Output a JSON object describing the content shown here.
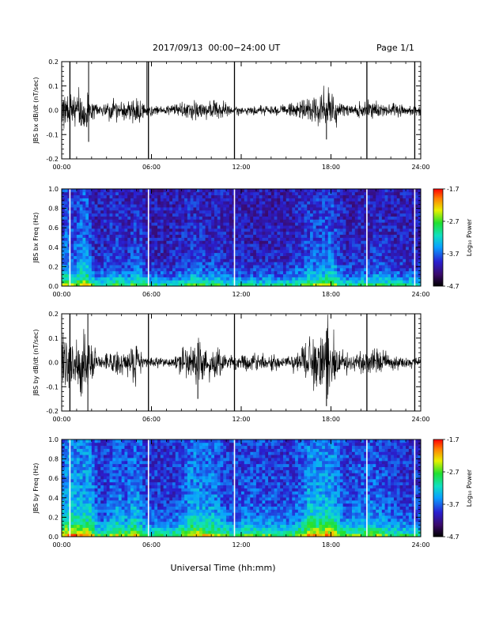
{
  "header": {
    "title": "2017/09/13  00:00−24:00 UT",
    "page": "Page 1/1"
  },
  "chart_data": [
    {
      "type": "line",
      "ylabel": "JBS bx dB/dt (nT/sec)",
      "ylim": [
        -0.2,
        0.2
      ],
      "yticks": [
        "-0.2",
        "-0.1",
        "0.0",
        "0.1",
        "0.2"
      ],
      "xlim": [
        0,
        24
      ],
      "xticks": [
        "00:00",
        "06:00",
        "12:00",
        "18:00",
        "24:00"
      ],
      "gaps_hours": [
        0.55,
        5.8,
        11.55,
        20.4,
        23.6
      ],
      "spikes": [
        {
          "x": 1.8,
          "min": -0.13,
          "max": 0.2
        },
        {
          "x": 5.7,
          "min": -0.02,
          "max": 0.2
        },
        {
          "x": 17.7,
          "min": -0.12,
          "max": 0.03
        }
      ]
    },
    {
      "type": "heatmap",
      "ylabel": "JBS bx Freq (Hz)",
      "ylim": [
        0,
        1
      ],
      "yticks": [
        "0.0",
        "0.2",
        "0.4",
        "0.6",
        "0.8",
        "1.0"
      ],
      "xlim": [
        0,
        24
      ],
      "xticks": [
        "00:00",
        "06:00",
        "12:00",
        "18:00",
        "24:00"
      ],
      "colorbar": {
        "label": "Log₁₀ Power",
        "range": [
          -4.7,
          -1.7
        ],
        "ticks": [
          "-1.7",
          "-2.7",
          "-3.7",
          "-4.7"
        ]
      }
    },
    {
      "type": "line",
      "ylabel": "JBS by dB/dt (nT/sec)",
      "ylim": [
        -0.2,
        0.2
      ],
      "yticks": [
        "-0.2",
        "-0.1",
        "0.0",
        "0.1",
        "0.2"
      ],
      "xlim": [
        0,
        24
      ],
      "xticks": [
        "00:00",
        "06:00",
        "12:00",
        "18:00",
        "24:00"
      ],
      "gaps_hours": [
        0.55,
        5.8,
        11.55,
        20.4,
        23.6
      ],
      "spikes": [
        {
          "x": 1.75,
          "min": -0.2,
          "max": 0.2
        },
        {
          "x": 9.1,
          "min": -0.15,
          "max": 0.08
        },
        {
          "x": 17.7,
          "min": -0.18,
          "max": 0.13
        }
      ]
    },
    {
      "type": "heatmap",
      "ylabel": "JBS by Freq (Hz)",
      "ylim": [
        0,
        1
      ],
      "yticks": [
        "0.0",
        "0.2",
        "0.4",
        "0.6",
        "0.8",
        "1.0"
      ],
      "xlim": [
        0,
        24
      ],
      "xticks": [
        "00:00",
        "06:00",
        "12:00",
        "18:00",
        "24:00"
      ],
      "colorbar": {
        "label": "Log₁₀ Power",
        "range": [
          -4.7,
          -1.7
        ],
        "ticks": [
          "-1.7",
          "-2.7",
          "-3.7",
          "-4.7"
        ]
      }
    }
  ],
  "xlabel": "Universal Time (hh:mm)"
}
